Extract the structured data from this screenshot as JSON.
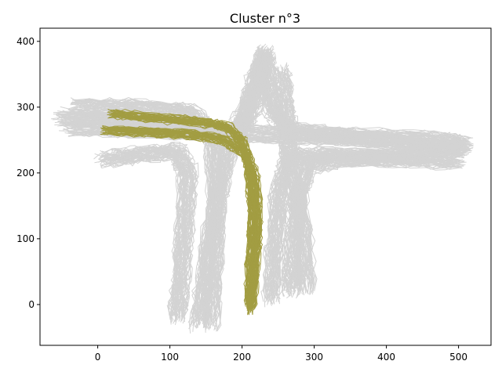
{
  "chart_data": {
    "type": "line",
    "title": "Cluster n°3",
    "xlabel": "",
    "ylabel": "",
    "xlim": [
      -80,
      545
    ],
    "ylim": [
      -62,
      420
    ],
    "x_ticks": [
      0,
      100,
      200,
      300,
      400,
      500
    ],
    "y_ticks": [
      0,
      100,
      200,
      300,
      400
    ],
    "grid": false,
    "legend": "none",
    "colors": {
      "background_trajectories": "#d3d3d3",
      "highlighted_cluster": "#a29d42"
    },
    "series": [
      {
        "group": "background",
        "description_path": "left arm to top arm",
        "x": [
          -50,
          40,
          140,
          180,
          200,
          215,
          225,
          235
        ],
        "y": [
          285,
          280,
          270,
          255,
          270,
          300,
          350,
          385
        ]
      },
      {
        "group": "background",
        "description_path": "horizontal crossing",
        "x": [
          -40,
          60,
          160,
          260,
          360,
          460,
          510
        ],
        "y": [
          270,
          268,
          262,
          258,
          255,
          250,
          245
        ]
      },
      {
        "group": "background",
        "description_path": "top arm to right arm",
        "x": [
          230,
          235,
          245,
          270,
          350,
          450,
          510
        ],
        "y": [
          380,
          330,
          290,
          265,
          255,
          245,
          240
        ]
      },
      {
        "group": "background",
        "description_path": "right arm to lower-right branch",
        "x": [
          500,
          420,
          330,
          290,
          275,
          270,
          268
        ],
        "y": [
          235,
          225,
          220,
          210,
          150,
          60,
          20
        ]
      },
      {
        "group": "background",
        "description_path": "upper-left to lower-left branch",
        "x": [
          10,
          60,
          110,
          125,
          120,
          115,
          110
        ],
        "y": [
          220,
          228,
          232,
          200,
          120,
          40,
          -20
        ]
      },
      {
        "group": "background",
        "description_path": "lower-left branch up to top",
        "x": [
          140,
          150,
          165,
          180,
          200,
          215,
          230
        ],
        "y": [
          -30,
          60,
          160,
          230,
          280,
          330,
          380
        ]
      },
      {
        "group": "background",
        "description_path": "lower-center to right arm",
        "x": [
          240,
          245,
          250,
          265,
          320,
          420,
          500
        ],
        "y": [
          10,
          90,
          170,
          225,
          228,
          222,
          218
        ]
      },
      {
        "group": "background",
        "description_path": "left arm to lower-left",
        "x": [
          -30,
          60,
          130,
          160,
          165,
          160,
          155
        ],
        "y": [
          300,
          298,
          290,
          250,
          150,
          50,
          -30
        ]
      },
      {
        "group": "background",
        "description_path": "top arm down to lower-right",
        "x": [
          255,
          260,
          265,
          268,
          285,
          290
        ],
        "y": [
          355,
          300,
          250,
          210,
          120,
          25
        ]
      },
      {
        "group": "cluster",
        "description_path": "cluster 3 representative left-to-down turn",
        "x": [
          20,
          80,
          140,
          180,
          200,
          210,
          215,
          212,
          210
        ],
        "y": [
          290,
          283,
          278,
          270,
          250,
          205,
          140,
          70,
          0
        ]
      },
      {
        "group": "cluster",
        "description_path": "cluster 3 variant",
        "x": [
          10,
          70,
          130,
          175,
          205,
          218,
          222,
          218,
          212
        ],
        "y": [
          265,
          262,
          258,
          250,
          230,
          190,
          120,
          50,
          -10
        ]
      }
    ]
  }
}
